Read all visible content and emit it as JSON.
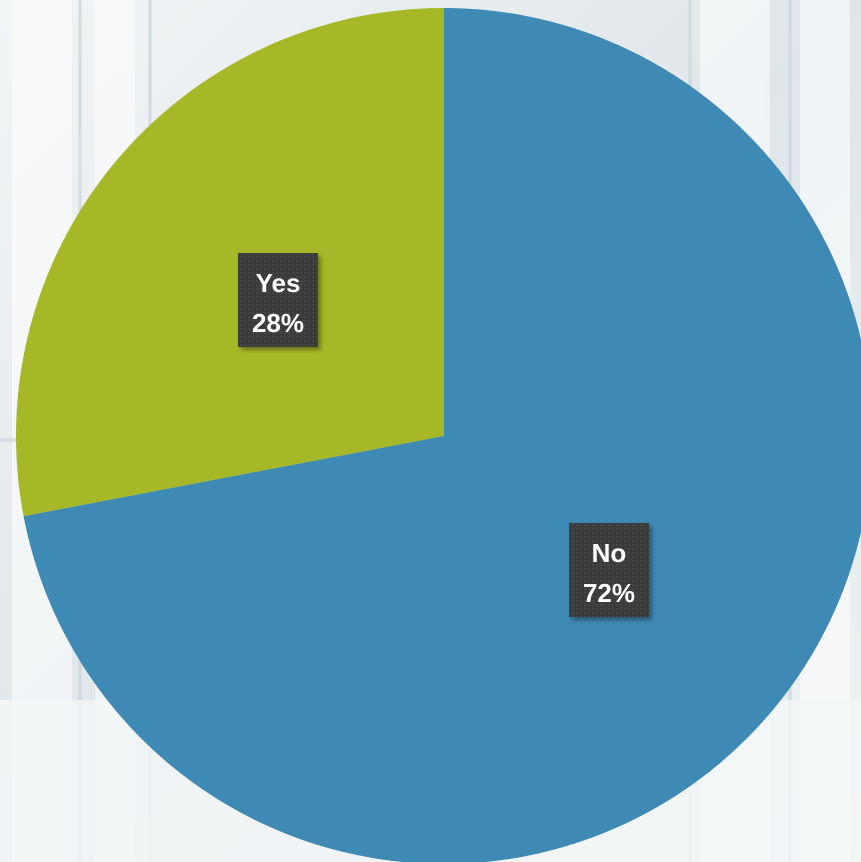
{
  "chart_data": {
    "type": "pie",
    "categories": [
      "Yes",
      "No"
    ],
    "values": [
      28,
      72
    ],
    "value_suffix": "%",
    "title": "",
    "legend": "none",
    "start_angle_deg": 0,
    "direction": "counterclockwise",
    "colors": {
      "Yes": "#a6b828",
      "No": "#3f89b5",
      "label_box": "#3a3a3a",
      "label_text": "#ffffff"
    }
  }
}
